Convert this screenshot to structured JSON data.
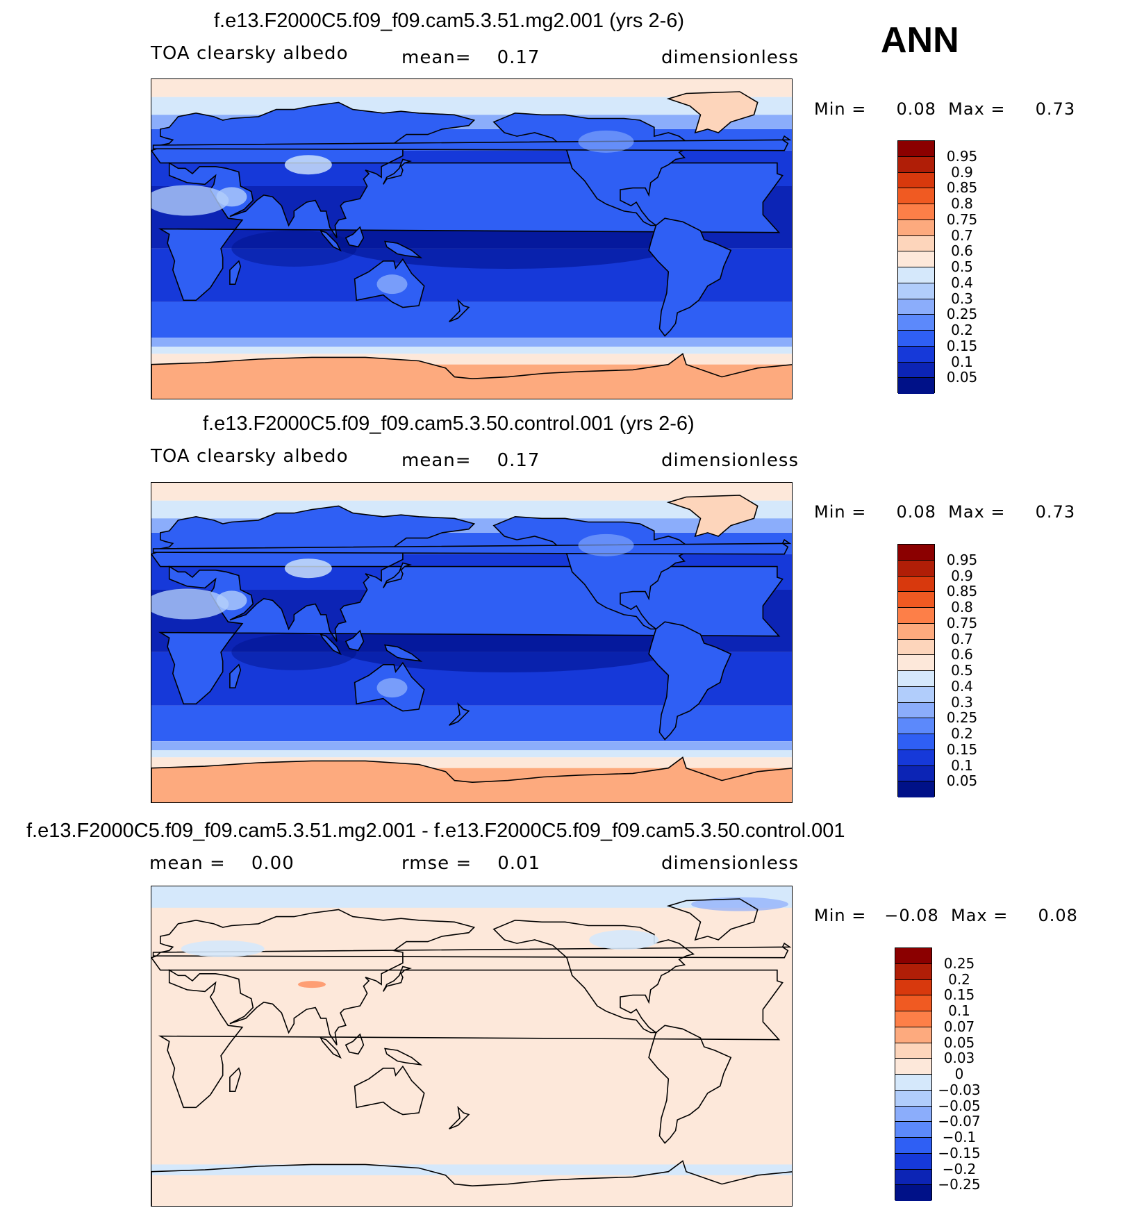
{
  "season": "ANN",
  "panels": [
    {
      "title": "f.e13.F2000C5.f09_f09.cam5.3.51.mg2.001 (yrs 2-6)",
      "left": "TOA clearsky albedo",
      "middle": "mean=    0.17",
      "right": "dimensionless",
      "minmax": "Min =     0.08  Max =     0.73",
      "colorbar_labels": [
        "0.95",
        "0.9",
        "0.85",
        "0.8",
        "0.75",
        "0.7",
        "0.6",
        "0.5",
        "0.4",
        "0.3",
        "0.25",
        "0.2",
        "0.15",
        "0.1",
        "0.05"
      ],
      "colorbar_colors": [
        "#8b0000",
        "#b01e07",
        "#d8390d",
        "#f05a22",
        "#fd7f48",
        "#fdaa7e",
        "#fdd5bb",
        "#fde8da",
        "#d5e8fb",
        "#b1cdfb",
        "#8badfb",
        "#5c89fb",
        "#2f5ff4",
        "#1639d9",
        "#0c24b5",
        "#001188"
      ],
      "map_style": "abs"
    },
    {
      "title": "f.e13.F2000C5.f09_f09.cam5.3.50.control.001 (yrs 2-6)",
      "left": "TOA clearsky albedo",
      "middle": "mean=    0.17",
      "right": "dimensionless",
      "minmax": "Min =     0.08  Max =     0.73",
      "colorbar_labels": [
        "0.95",
        "0.9",
        "0.85",
        "0.8",
        "0.75",
        "0.7",
        "0.6",
        "0.5",
        "0.4",
        "0.3",
        "0.25",
        "0.2",
        "0.15",
        "0.1",
        "0.05"
      ],
      "colorbar_colors": [
        "#8b0000",
        "#b01e07",
        "#d8390d",
        "#f05a22",
        "#fd7f48",
        "#fdaa7e",
        "#fdd5bb",
        "#fde8da",
        "#d5e8fb",
        "#b1cdfb",
        "#8badfb",
        "#5c89fb",
        "#2f5ff4",
        "#1639d9",
        "#0c24b5",
        "#001188"
      ],
      "map_style": "abs"
    },
    {
      "title": "f.e13.F2000C5.f09_f09.cam5.3.51.mg2.001 - f.e13.F2000C5.f09_f09.cam5.3.50.control.001",
      "left": "mean =    0.00",
      "middle": "rmse =    0.01",
      "right": "dimensionless",
      "minmax": "Min =   −0.08  Max =     0.08",
      "colorbar_labels": [
        "0.25",
        "0.2",
        "0.15",
        "0.1",
        "0.07",
        "0.05",
        "0.03",
        "0",
        "−0.03",
        "−0.05",
        "−0.07",
        "−0.1",
        "−0.15",
        "−0.2",
        "−0.25"
      ],
      "colorbar_colors": [
        "#8b0000",
        "#b01e07",
        "#d8390d",
        "#f05a22",
        "#fd7f48",
        "#fdaa7e",
        "#fdd5bb",
        "#fde8da",
        "#d5e8fb",
        "#b1cdfb",
        "#8badfb",
        "#5c89fb",
        "#2f5ff4",
        "#1639d9",
        "#0c24b5",
        "#001188"
      ],
      "map_style": "diff"
    }
  ]
}
